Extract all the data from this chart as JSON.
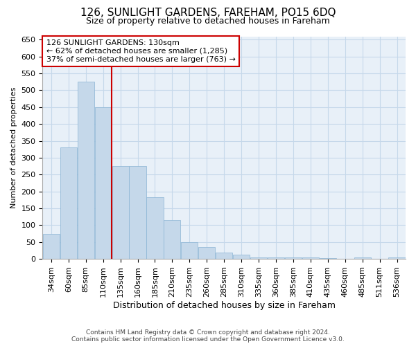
{
  "title": "126, SUNLIGHT GARDENS, FAREHAM, PO15 6DQ",
  "subtitle": "Size of property relative to detached houses in Fareham",
  "xlabel": "Distribution of detached houses by size in Fareham",
  "ylabel": "Number of detached properties",
  "footnote1": "Contains HM Land Registry data © Crown copyright and database right 2024.",
  "footnote2": "Contains public sector information licensed under the Open Government Licence v3.0.",
  "categories": [
    "34sqm",
    "60sqm",
    "85sqm",
    "110sqm",
    "135sqm",
    "160sqm",
    "185sqm",
    "210sqm",
    "235sqm",
    "260sqm",
    "285sqm",
    "310sqm",
    "335sqm",
    "360sqm",
    "385sqm",
    "410sqm",
    "435sqm",
    "460sqm",
    "485sqm",
    "511sqm",
    "536sqm"
  ],
  "values": [
    75,
    330,
    525,
    450,
    275,
    275,
    183,
    115,
    50,
    35,
    18,
    13,
    5,
    5,
    4,
    5,
    2,
    0,
    5,
    0,
    5
  ],
  "bar_color": "#c5d8ea",
  "bar_edge_color": "#8ab4d4",
  "grid_color": "#c5d8ea",
  "plot_bg_color": "#e8f0f8",
  "vline_color": "#cc0000",
  "annotation_text": "126 SUNLIGHT GARDENS: 130sqm\n← 62% of detached houses are smaller (1,285)\n37% of semi-detached houses are larger (763) →",
  "annotation_bg": "#ffffff",
  "annotation_border": "#cc0000",
  "ylim": [
    0,
    660
  ],
  "yticks": [
    0,
    50,
    100,
    150,
    200,
    250,
    300,
    350,
    400,
    450,
    500,
    550,
    600,
    650
  ],
  "title_fontsize": 11,
  "subtitle_fontsize": 9,
  "ylabel_fontsize": 8,
  "xlabel_fontsize": 9,
  "tick_fontsize": 8,
  "annot_fontsize": 8,
  "footnote_fontsize": 6.5
}
